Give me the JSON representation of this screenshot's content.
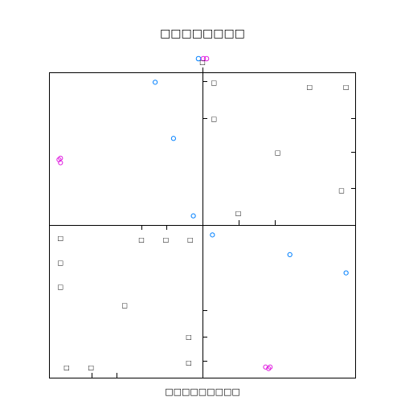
{
  "chart_data": {
    "type": "scatter",
    "title": "□□□□□□□□",
    "xlabel": "□□□□□□□□□",
    "ylabel": "",
    "colors": {
      "group_a": "#0080ff",
      "group_b": "#e020e0",
      "axes": "#000000"
    },
    "legend_points": [
      {
        "group": "a",
        "value": "○"
      },
      {
        "group": "b",
        "value": "○"
      },
      {
        "group": "b",
        "value": "○"
      }
    ],
    "tick_glyph": "□",
    "panels": [
      {
        "position": "top-left",
        "xlim": [
          0,
          1
        ],
        "ylim": [
          0,
          1
        ],
        "points": [
          {
            "x": 0.69,
            "y": 0.94,
            "group": "a"
          },
          {
            "x": 0.81,
            "y": 0.57,
            "group": "a"
          },
          {
            "x": 0.94,
            "y": 0.06,
            "group": "a"
          },
          {
            "x": 0.06,
            "y": 0.43,
            "group": "b"
          },
          {
            "x": 0.07,
            "y": 0.41,
            "group": "b"
          },
          {
            "x": 0.07,
            "y": 0.44,
            "group": "b"
          }
        ]
      },
      {
        "position": "top-right",
        "xlim": [
          0,
          1
        ],
        "ylim": [
          0,
          1
        ],
        "glyph_points": [
          {
            "x": 0.07,
            "y": 0.94
          },
          {
            "x": 0.07,
            "y": 0.7
          },
          {
            "x": 0.7,
            "y": 0.91
          },
          {
            "x": 0.94,
            "y": 0.91
          },
          {
            "x": 0.49,
            "y": 0.48
          },
          {
            "x": 0.91,
            "y": 0.23
          },
          {
            "x": 0.23,
            "y": 0.08
          }
        ]
      },
      {
        "position": "bottom-left",
        "xlim": [
          0,
          1
        ],
        "ylim": [
          0,
          1
        ],
        "glyph_points": [
          {
            "x": 0.07,
            "y": 0.92
          },
          {
            "x": 0.07,
            "y": 0.76
          },
          {
            "x": 0.07,
            "y": 0.6
          },
          {
            "x": 0.6,
            "y": 0.91
          },
          {
            "x": 0.76,
            "y": 0.91
          },
          {
            "x": 0.92,
            "y": 0.91
          },
          {
            "x": 0.49,
            "y": 0.48
          },
          {
            "x": 0.91,
            "y": 0.27
          },
          {
            "x": 0.91,
            "y": 0.1
          },
          {
            "x": 0.11,
            "y": 0.07
          },
          {
            "x": 0.27,
            "y": 0.07
          }
        ]
      },
      {
        "position": "bottom-right",
        "xlim": [
          0,
          1
        ],
        "ylim": [
          0,
          1
        ],
        "points": [
          {
            "x": 0.06,
            "y": 0.94,
            "group": "a"
          },
          {
            "x": 0.57,
            "y": 0.81,
            "group": "a"
          },
          {
            "x": 0.94,
            "y": 0.69,
            "group": "a"
          },
          {
            "x": 0.41,
            "y": 0.07,
            "group": "b"
          },
          {
            "x": 0.43,
            "y": 0.06,
            "group": "b"
          },
          {
            "x": 0.44,
            "y": 0.07,
            "group": "b"
          }
        ]
      }
    ]
  }
}
